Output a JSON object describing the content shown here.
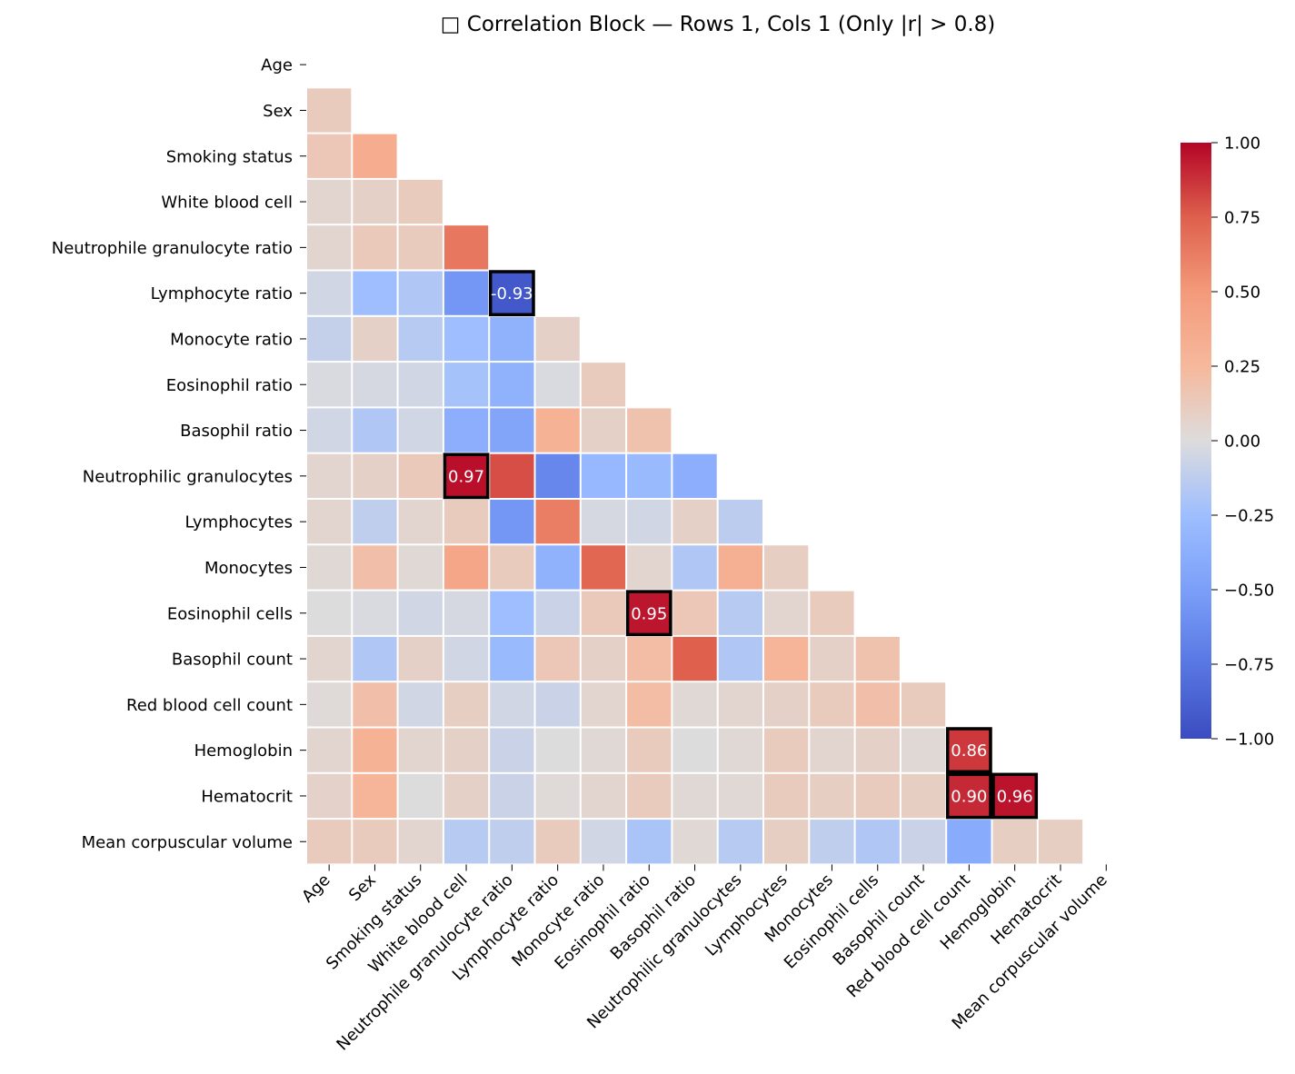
{
  "chart_data": {
    "type": "heatmap",
    "title": "□ Correlation Block — Rows 1, Cols 1 (Only |r| > 0.8)",
    "mask": "upper-triangle",
    "annotation_threshold": 0.8,
    "labels": [
      "Age",
      "Sex",
      "Smoking status",
      "White blood cell",
      "Neutrophile granulocyte ratio",
      "Lymphocyte ratio",
      "Monocyte ratio",
      "Eosinophil ratio",
      "Basophil ratio",
      "Neutrophilic granulocytes",
      "Lymphocytes",
      "Monocytes",
      "Eosinophil cells",
      "Basophil count",
      "Red blood cell count",
      "Hemoglobin",
      "Hematocrit",
      "Mean corpuscular volume"
    ],
    "values": [
      [],
      [
        0.12
      ],
      [
        0.15,
        0.35
      ],
      [
        0.05,
        0.08,
        0.12
      ],
      [
        0.05,
        0.13,
        0.12,
        0.65
      ],
      [
        -0.05,
        -0.25,
        -0.18,
        -0.55,
        -0.93
      ],
      [
        -0.1,
        0.08,
        -0.15,
        -0.25,
        -0.35,
        0.08
      ],
      [
        -0.02,
        -0.03,
        -0.05,
        -0.22,
        -0.35,
        -0.02,
        0.12
      ],
      [
        -0.05,
        -0.18,
        -0.05,
        -0.38,
        -0.45,
        0.3,
        0.08,
        0.18
      ],
      [
        0.05,
        0.08,
        0.13,
        0.97,
        0.8,
        -0.65,
        -0.3,
        -0.28,
        -0.38
      ],
      [
        0.05,
        -0.12,
        0.05,
        0.12,
        -0.55,
        0.62,
        -0.03,
        -0.05,
        0.08,
        -0.13
      ],
      [
        0.03,
        0.2,
        0.03,
        0.4,
        0.12,
        -0.35,
        0.72,
        0.05,
        -0.18,
        0.32,
        0.1
      ],
      [
        0.0,
        -0.02,
        -0.05,
        -0.03,
        -0.25,
        -0.08,
        0.13,
        0.95,
        0.15,
        -0.15,
        0.05,
        0.12
      ],
      [
        0.05,
        -0.18,
        0.08,
        -0.05,
        -0.28,
        0.15,
        0.08,
        0.22,
        0.75,
        -0.18,
        0.28,
        0.08,
        0.18
      ],
      [
        0.02,
        0.2,
        -0.05,
        0.1,
        -0.05,
        -0.08,
        0.05,
        0.22,
        0.03,
        0.05,
        0.08,
        0.12,
        0.2,
        0.12
      ],
      [
        0.05,
        0.3,
        0.05,
        0.08,
        -0.08,
        0.0,
        0.03,
        0.12,
        0.0,
        0.03,
        0.12,
        0.05,
        0.08,
        0.03,
        0.86
      ],
      [
        0.07,
        0.28,
        0.0,
        0.08,
        -0.08,
        0.02,
        0.05,
        0.12,
        0.03,
        0.03,
        0.12,
        0.1,
        0.12,
        0.1,
        0.9,
        0.96
      ],
      [
        0.12,
        0.12,
        0.05,
        -0.15,
        -0.12,
        0.12,
        -0.05,
        -0.2,
        0.03,
        -0.15,
        0.1,
        -0.12,
        -0.18,
        -0.08,
        -0.4,
        0.1,
        0.1
      ]
    ],
    "colorbar": {
      "colormap": "coolwarm",
      "range": [
        -1.0,
        1.0
      ],
      "ticks": [
        1.0,
        0.75,
        0.5,
        0.25,
        0.0,
        -0.25,
        -0.5,
        -0.75,
        -1.0
      ],
      "tick_labels": [
        "1.00",
        "0.75",
        "0.50",
        "0.25",
        "0.00",
        "−0.25",
        "−0.50",
        "−0.75",
        "−1.00"
      ]
    }
  }
}
